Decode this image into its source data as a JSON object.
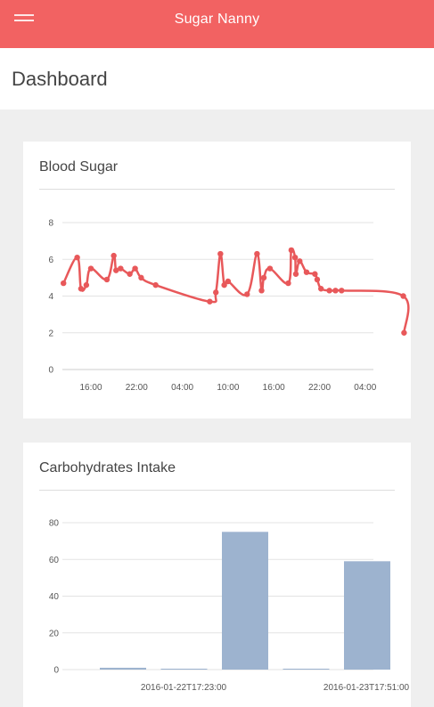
{
  "app": {
    "title": "Sugar Nanny"
  },
  "page": {
    "title": "Dashboard"
  },
  "colors": {
    "accent": "#f26262",
    "line": "#e8585a",
    "bar": "#9db3cf",
    "grid": "#e3e3e3"
  },
  "icons": {
    "menu": "hamburger-menu-icon"
  },
  "cards": [
    {
      "title": "Blood Sugar"
    },
    {
      "title": "Carbohydrates Intake"
    }
  ],
  "chart_data": [
    {
      "type": "line",
      "title": "Blood Sugar",
      "xlabel": "",
      "ylabel": "",
      "ylim": [
        0,
        8
      ],
      "yticks": [
        0,
        2,
        4,
        6,
        8
      ],
      "x_tick_labels": [
        "16:00",
        "22:00",
        "04:00",
        "10:00",
        "16:00",
        "22:00",
        "04:00"
      ],
      "grid": true,
      "series": [
        {
          "x_hours": [
            -3.6,
            -1.8,
            -1.3,
            -0.6,
            0.0,
            2.1,
            3.0,
            3.3,
            3.9,
            5.1,
            5.8,
            6.6,
            8.5,
            15.6,
            16.4,
            17.0,
            17.5,
            18.0,
            20.5,
            21.8,
            22.4,
            22.7,
            23.5,
            25.9,
            26.3,
            26.8,
            26.9,
            27.4,
            28.3,
            29.4,
            29.7,
            30.2,
            31.3,
            32.1,
            32.9,
            41.0,
            41.1
          ],
          "y": [
            4.7,
            6.1,
            4.4,
            4.6,
            5.5,
            4.9,
            6.2,
            5.4,
            5.5,
            5.2,
            5.5,
            5.0,
            4.6,
            3.7,
            4.2,
            6.3,
            4.6,
            4.8,
            4.1,
            6.3,
            4.3,
            5.0,
            5.5,
            4.7,
            6.5,
            6.1,
            5.2,
            5.9,
            5.3,
            5.2,
            4.9,
            4.4,
            4.3,
            4.3,
            4.3,
            4.0,
            2.0
          ]
        }
      ]
    },
    {
      "type": "bar",
      "title": "Carbohydrates Intake",
      "xlabel": "",
      "ylabel": "",
      "ylim": [
        0,
        80
      ],
      "yticks": [
        0,
        20,
        40,
        60,
        80
      ],
      "categories": [
        "",
        "2016-01-22T17:23:00",
        "",
        "",
        "2016-01-23T17:51:00"
      ],
      "x_tick_labels": [
        "2016-01-22T17:23:00",
        "2016-01-23T17:51:00"
      ],
      "values": [
        1,
        0.5,
        75,
        0.5,
        59
      ],
      "grid": true
    }
  ]
}
